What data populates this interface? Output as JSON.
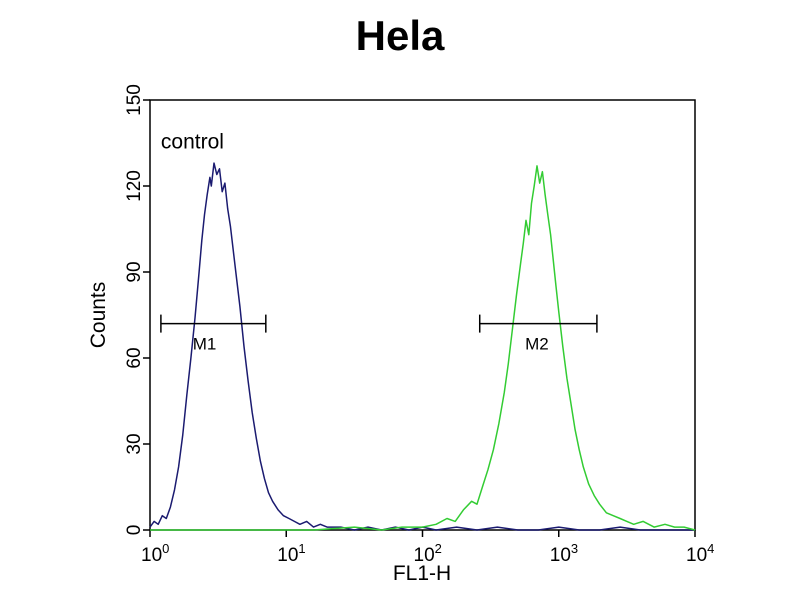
{
  "page": {
    "background": "#ffffff"
  },
  "chart_data": {
    "type": "line",
    "chart_kind": "flow-cytometry-histogram",
    "title": "Hela",
    "xlabel": "FL1-H",
    "ylabel": "Counts",
    "x_scale": "log10",
    "x_exponent_range": [
      0,
      4
    ],
    "x_tick_exponents": [
      0,
      1,
      2,
      3,
      4
    ],
    "ylim": [
      0,
      150
    ],
    "y_ticks": [
      0,
      30,
      60,
      90,
      120,
      150
    ],
    "grid": false,
    "legend": false,
    "annotation": {
      "text": "control",
      "x_log": 0.08,
      "y": 133
    },
    "markers": [
      {
        "label": "M1",
        "y": 72,
        "x_log_start": 0.08,
        "x_log_end": 0.85,
        "label_x_log": 0.4
      },
      {
        "label": "M2",
        "y": 72,
        "x_log_start": 2.42,
        "x_log_end": 3.28,
        "label_x_log": 2.84
      }
    ],
    "series": [
      {
        "name": "control",
        "color": "#1b1b70",
        "peak_x_log": 0.47,
        "peak_count": 128,
        "points": [
          [
            0.0,
            1
          ],
          [
            0.03,
            3
          ],
          [
            0.06,
            2
          ],
          [
            0.09,
            5
          ],
          [
            0.12,
            4
          ],
          [
            0.15,
            8
          ],
          [
            0.18,
            14
          ],
          [
            0.21,
            22
          ],
          [
            0.24,
            33
          ],
          [
            0.27,
            47
          ],
          [
            0.3,
            60
          ],
          [
            0.33,
            74
          ],
          [
            0.36,
            90
          ],
          [
            0.38,
            101
          ],
          [
            0.4,
            110
          ],
          [
            0.42,
            117
          ],
          [
            0.44,
            123
          ],
          [
            0.45,
            120
          ],
          [
            0.47,
            128
          ],
          [
            0.49,
            124
          ],
          [
            0.51,
            126
          ],
          [
            0.53,
            118
          ],
          [
            0.55,
            121
          ],
          [
            0.57,
            112
          ],
          [
            0.59,
            106
          ],
          [
            0.61,
            98
          ],
          [
            0.63,
            90
          ],
          [
            0.66,
            78
          ],
          [
            0.69,
            64
          ],
          [
            0.72,
            52
          ],
          [
            0.75,
            41
          ],
          [
            0.78,
            32
          ],
          [
            0.81,
            24
          ],
          [
            0.84,
            18
          ],
          [
            0.87,
            13
          ],
          [
            0.9,
            10
          ],
          [
            0.94,
            7
          ],
          [
            0.98,
            5
          ],
          [
            1.02,
            4
          ],
          [
            1.06,
            3
          ],
          [
            1.1,
            2
          ],
          [
            1.15,
            3
          ],
          [
            1.2,
            1
          ],
          [
            1.25,
            2
          ],
          [
            1.3,
            1
          ],
          [
            1.4,
            1
          ],
          [
            1.5,
            0
          ],
          [
            1.6,
            1
          ],
          [
            1.7,
            0
          ],
          [
            1.8,
            1
          ],
          [
            1.9,
            0
          ],
          [
            2.0,
            1
          ],
          [
            2.1,
            0
          ],
          [
            2.25,
            1
          ],
          [
            2.4,
            0
          ],
          [
            2.55,
            1
          ],
          [
            2.7,
            0
          ],
          [
            2.85,
            0
          ],
          [
            3.0,
            1
          ],
          [
            3.15,
            0
          ],
          [
            3.3,
            0
          ],
          [
            3.45,
            1
          ],
          [
            3.6,
            0
          ],
          [
            3.75,
            0
          ],
          [
            3.9,
            0
          ],
          [
            4.0,
            0
          ]
        ]
      },
      {
        "name": "sample-green",
        "color": "#33cc33",
        "peak_x_log": 2.84,
        "peak_count": 127,
        "points": [
          [
            0.0,
            0
          ],
          [
            0.3,
            0
          ],
          [
            0.6,
            0
          ],
          [
            0.9,
            0
          ],
          [
            1.2,
            0
          ],
          [
            1.5,
            1
          ],
          [
            1.7,
            0
          ],
          [
            1.85,
            1
          ],
          [
            2.0,
            1
          ],
          [
            2.1,
            2
          ],
          [
            2.18,
            4
          ],
          [
            2.24,
            3
          ],
          [
            2.3,
            7
          ],
          [
            2.36,
            10
          ],
          [
            2.4,
            9
          ],
          [
            2.44,
            15
          ],
          [
            2.48,
            21
          ],
          [
            2.52,
            28
          ],
          [
            2.56,
            37
          ],
          [
            2.6,
            48
          ],
          [
            2.63,
            58
          ],
          [
            2.66,
            70
          ],
          [
            2.69,
            82
          ],
          [
            2.72,
            93
          ],
          [
            2.74,
            100
          ],
          [
            2.76,
            108
          ],
          [
            2.78,
            103
          ],
          [
            2.8,
            114
          ],
          [
            2.82,
            120
          ],
          [
            2.84,
            127
          ],
          [
            2.86,
            121
          ],
          [
            2.88,
            125
          ],
          [
            2.9,
            117
          ],
          [
            2.92,
            110
          ],
          [
            2.94,
            103
          ],
          [
            2.96,
            94
          ],
          [
            2.98,
            85
          ],
          [
            3.0,
            76
          ],
          [
            3.03,
            64
          ],
          [
            3.06,
            53
          ],
          [
            3.09,
            44
          ],
          [
            3.12,
            35
          ],
          [
            3.15,
            28
          ],
          [
            3.18,
            22
          ],
          [
            3.22,
            16
          ],
          [
            3.26,
            12
          ],
          [
            3.3,
            9
          ],
          [
            3.35,
            6
          ],
          [
            3.4,
            5
          ],
          [
            3.45,
            4
          ],
          [
            3.5,
            3
          ],
          [
            3.55,
            2
          ],
          [
            3.62,
            3
          ],
          [
            3.7,
            1
          ],
          [
            3.78,
            2
          ],
          [
            3.85,
            1
          ],
          [
            3.92,
            1
          ],
          [
            4.0,
            0
          ]
        ]
      }
    ]
  }
}
